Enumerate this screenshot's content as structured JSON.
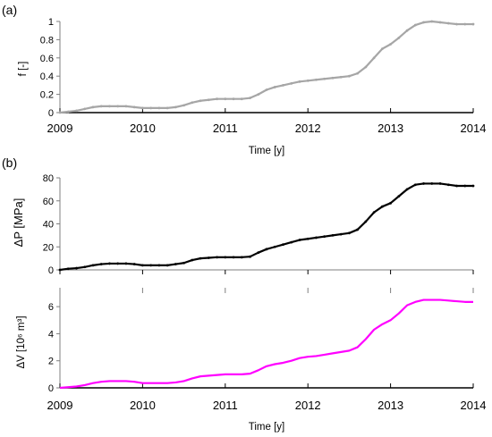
{
  "panel_labels": {
    "a": "(a)",
    "b": "(b)"
  },
  "chart_data": [
    {
      "type": "line",
      "panel": "(a)",
      "xlabel": "Time [y]",
      "ylabel": "f [-]",
      "xlim": [
        2009,
        2014
      ],
      "ylim": [
        0,
        1
      ],
      "xticks": [
        "2009",
        "2010",
        "2011",
        "2012",
        "2013",
        "2014"
      ],
      "yticks": [
        "0",
        "0.2",
        "0.4",
        "0.6",
        "0.8",
        "1"
      ],
      "grid": false,
      "colors": {
        "line": "#a6a6a6"
      },
      "series": [
        {
          "x": [
            2009.0,
            2009.1,
            2009.2,
            2009.3,
            2009.4,
            2009.5,
            2009.6,
            2009.7,
            2009.8,
            2009.9,
            2010.0,
            2010.1,
            2010.2,
            2010.3,
            2010.4,
            2010.5,
            2010.6,
            2010.7,
            2010.8,
            2010.9,
            2011.0,
            2011.1,
            2011.2,
            2011.3,
            2011.4,
            2011.5,
            2011.6,
            2011.7,
            2011.8,
            2011.9,
            2012.0,
            2012.1,
            2012.2,
            2012.3,
            2012.4,
            2012.5,
            2012.6,
            2012.7,
            2012.8,
            2012.9,
            2013.0,
            2013.1,
            2013.2,
            2013.3,
            2013.4,
            2013.5,
            2013.6,
            2013.7,
            2013.8,
            2013.9,
            2014.0
          ],
          "values": [
            0.0,
            0.01,
            0.02,
            0.04,
            0.06,
            0.07,
            0.07,
            0.07,
            0.07,
            0.06,
            0.05,
            0.05,
            0.05,
            0.05,
            0.06,
            0.08,
            0.11,
            0.13,
            0.14,
            0.15,
            0.15,
            0.15,
            0.15,
            0.16,
            0.2,
            0.25,
            0.28,
            0.3,
            0.32,
            0.34,
            0.35,
            0.36,
            0.37,
            0.38,
            0.39,
            0.4,
            0.43,
            0.5,
            0.6,
            0.7,
            0.75,
            0.82,
            0.9,
            0.96,
            0.99,
            1.0,
            0.99,
            0.98,
            0.97,
            0.97,
            0.97
          ]
        }
      ]
    },
    {
      "type": "line",
      "panel": "(b) upper",
      "xlabel": "",
      "ylabel": "ΔP [MPa]",
      "xlim": [
        2009,
        2014
      ],
      "ylim": [
        0,
        80
      ],
      "xticks": [],
      "yticks": [
        "0",
        "20",
        "40",
        "60",
        "80"
      ],
      "grid": false,
      "colors": {
        "line": "#000000"
      },
      "series": [
        {
          "x": [
            2009.0,
            2009.1,
            2009.2,
            2009.3,
            2009.4,
            2009.5,
            2009.6,
            2009.7,
            2009.8,
            2009.9,
            2010.0,
            2010.1,
            2010.2,
            2010.3,
            2010.4,
            2010.5,
            2010.6,
            2010.7,
            2010.8,
            2010.9,
            2011.0,
            2011.1,
            2011.2,
            2011.3,
            2011.4,
            2011.5,
            2011.6,
            2011.7,
            2011.8,
            2011.9,
            2012.0,
            2012.1,
            2012.2,
            2012.3,
            2012.4,
            2012.5,
            2012.6,
            2012.7,
            2012.8,
            2012.9,
            2013.0,
            2013.1,
            2013.2,
            2013.3,
            2013.4,
            2013.5,
            2013.6,
            2013.7,
            2013.8,
            2013.9,
            2014.0
          ],
          "values": [
            0,
            1,
            1.5,
            2.5,
            4,
            5,
            5.5,
            5.5,
            5.5,
            5,
            4,
            4,
            4,
            4,
            5,
            6,
            8.5,
            10,
            10.5,
            11,
            11,
            11,
            11,
            11.5,
            15,
            18,
            20,
            22,
            24,
            26,
            27,
            28,
            29,
            30,
            31,
            32,
            35,
            42,
            50,
            55,
            58,
            64,
            70,
            74,
            75,
            75,
            75,
            74,
            73,
            73,
            73
          ]
        }
      ]
    },
    {
      "type": "line",
      "panel": "(b) lower",
      "xlabel": "Time [y]",
      "ylabel": "ΔV [10⁶ m³]",
      "xlim": [
        2009,
        2014
      ],
      "ylim": [
        0,
        7
      ],
      "xticks": [
        "2009",
        "2010",
        "2011",
        "2012",
        "2013",
        "2014"
      ],
      "yticks": [
        "0",
        "2",
        "4",
        "6"
      ],
      "grid": false,
      "colors": {
        "line": "#ff00ff"
      },
      "series": [
        {
          "x": [
            2009.0,
            2009.1,
            2009.2,
            2009.3,
            2009.4,
            2009.5,
            2009.6,
            2009.7,
            2009.8,
            2009.9,
            2010.0,
            2010.1,
            2010.2,
            2010.3,
            2010.4,
            2010.5,
            2010.6,
            2010.7,
            2010.8,
            2010.9,
            2011.0,
            2011.1,
            2011.2,
            2011.3,
            2011.4,
            2011.5,
            2011.6,
            2011.7,
            2011.8,
            2011.9,
            2012.0,
            2012.1,
            2012.2,
            2012.3,
            2012.4,
            2012.5,
            2012.6,
            2012.7,
            2012.8,
            2012.9,
            2013.0,
            2013.1,
            2013.2,
            2013.3,
            2013.4,
            2013.5,
            2013.6,
            2013.7,
            2013.8,
            2013.9,
            2014.0
          ],
          "values": [
            0.0,
            0.05,
            0.1,
            0.2,
            0.35,
            0.45,
            0.5,
            0.5,
            0.5,
            0.45,
            0.35,
            0.35,
            0.35,
            0.35,
            0.4,
            0.5,
            0.7,
            0.85,
            0.9,
            0.95,
            1.0,
            1.0,
            1.0,
            1.05,
            1.3,
            1.6,
            1.75,
            1.85,
            2.0,
            2.2,
            2.3,
            2.35,
            2.45,
            2.55,
            2.65,
            2.75,
            3.0,
            3.6,
            4.3,
            4.7,
            5.0,
            5.5,
            6.1,
            6.35,
            6.5,
            6.5,
            6.5,
            6.45,
            6.4,
            6.35,
            6.35
          ]
        }
      ]
    }
  ]
}
